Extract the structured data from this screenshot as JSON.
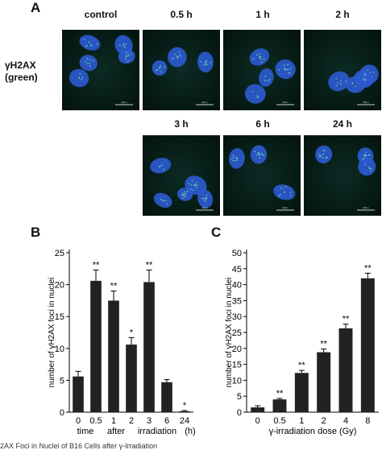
{
  "figure": {
    "panel_a": {
      "letter": "A",
      "row_label_line1": "γH2AX",
      "row_label_line2": "(green)",
      "timepoints": [
        "control",
        "0.5 h",
        "1 h",
        "2 h",
        "3 h",
        "6 h",
        "24 h"
      ],
      "scale_bar_text": "20μm"
    },
    "panel_b": {
      "letter": "B"
    },
    "panel_c": {
      "letter": "C"
    },
    "caption": "2AX Foci in Nuclei of B16 Cells after γ-Irradiation"
  },
  "chart_data": [
    {
      "type": "bar",
      "ylabel": "number of γH2AX foci  in nuclei",
      "xlabel_words": [
        "time",
        "after",
        "irradiation",
        "(h)"
      ],
      "categories": [
        "0",
        "0.5",
        "1",
        "2",
        "3",
        "6",
        "24"
      ],
      "values": [
        5.6,
        20.6,
        17.5,
        10.6,
        20.4,
        4.7,
        0.15
      ],
      "errors": [
        0.8,
        1.7,
        1.5,
        1.1,
        1.9,
        0.4,
        0.1
      ],
      "significance": [
        "",
        "**",
        "**",
        "*",
        "**",
        "",
        "*"
      ],
      "ylim": [
        0,
        25
      ],
      "yticks": [
        0,
        5,
        10,
        15,
        20,
        25
      ],
      "bar_color": "#222222"
    },
    {
      "type": "bar",
      "ylabel": "number of γH2AX foci  in nuclei",
      "xlabel": "γ-irradiation  dose  (Gy)",
      "categories": [
        "0",
        "0.5",
        "1",
        "2",
        "4",
        "8"
      ],
      "values": [
        1.5,
        4.0,
        12.3,
        18.8,
        26.3,
        42.0
      ],
      "errors": [
        0.5,
        0.3,
        0.8,
        1.0,
        1.3,
        1.6
      ],
      "significance": [
        "",
        "**",
        "**",
        "**",
        "**",
        "**"
      ],
      "ylim": [
        0,
        50
      ],
      "yticks": [
        0,
        5,
        10,
        15,
        20,
        25,
        30,
        35,
        40,
        45,
        50
      ],
      "bar_color": "#222222"
    }
  ]
}
